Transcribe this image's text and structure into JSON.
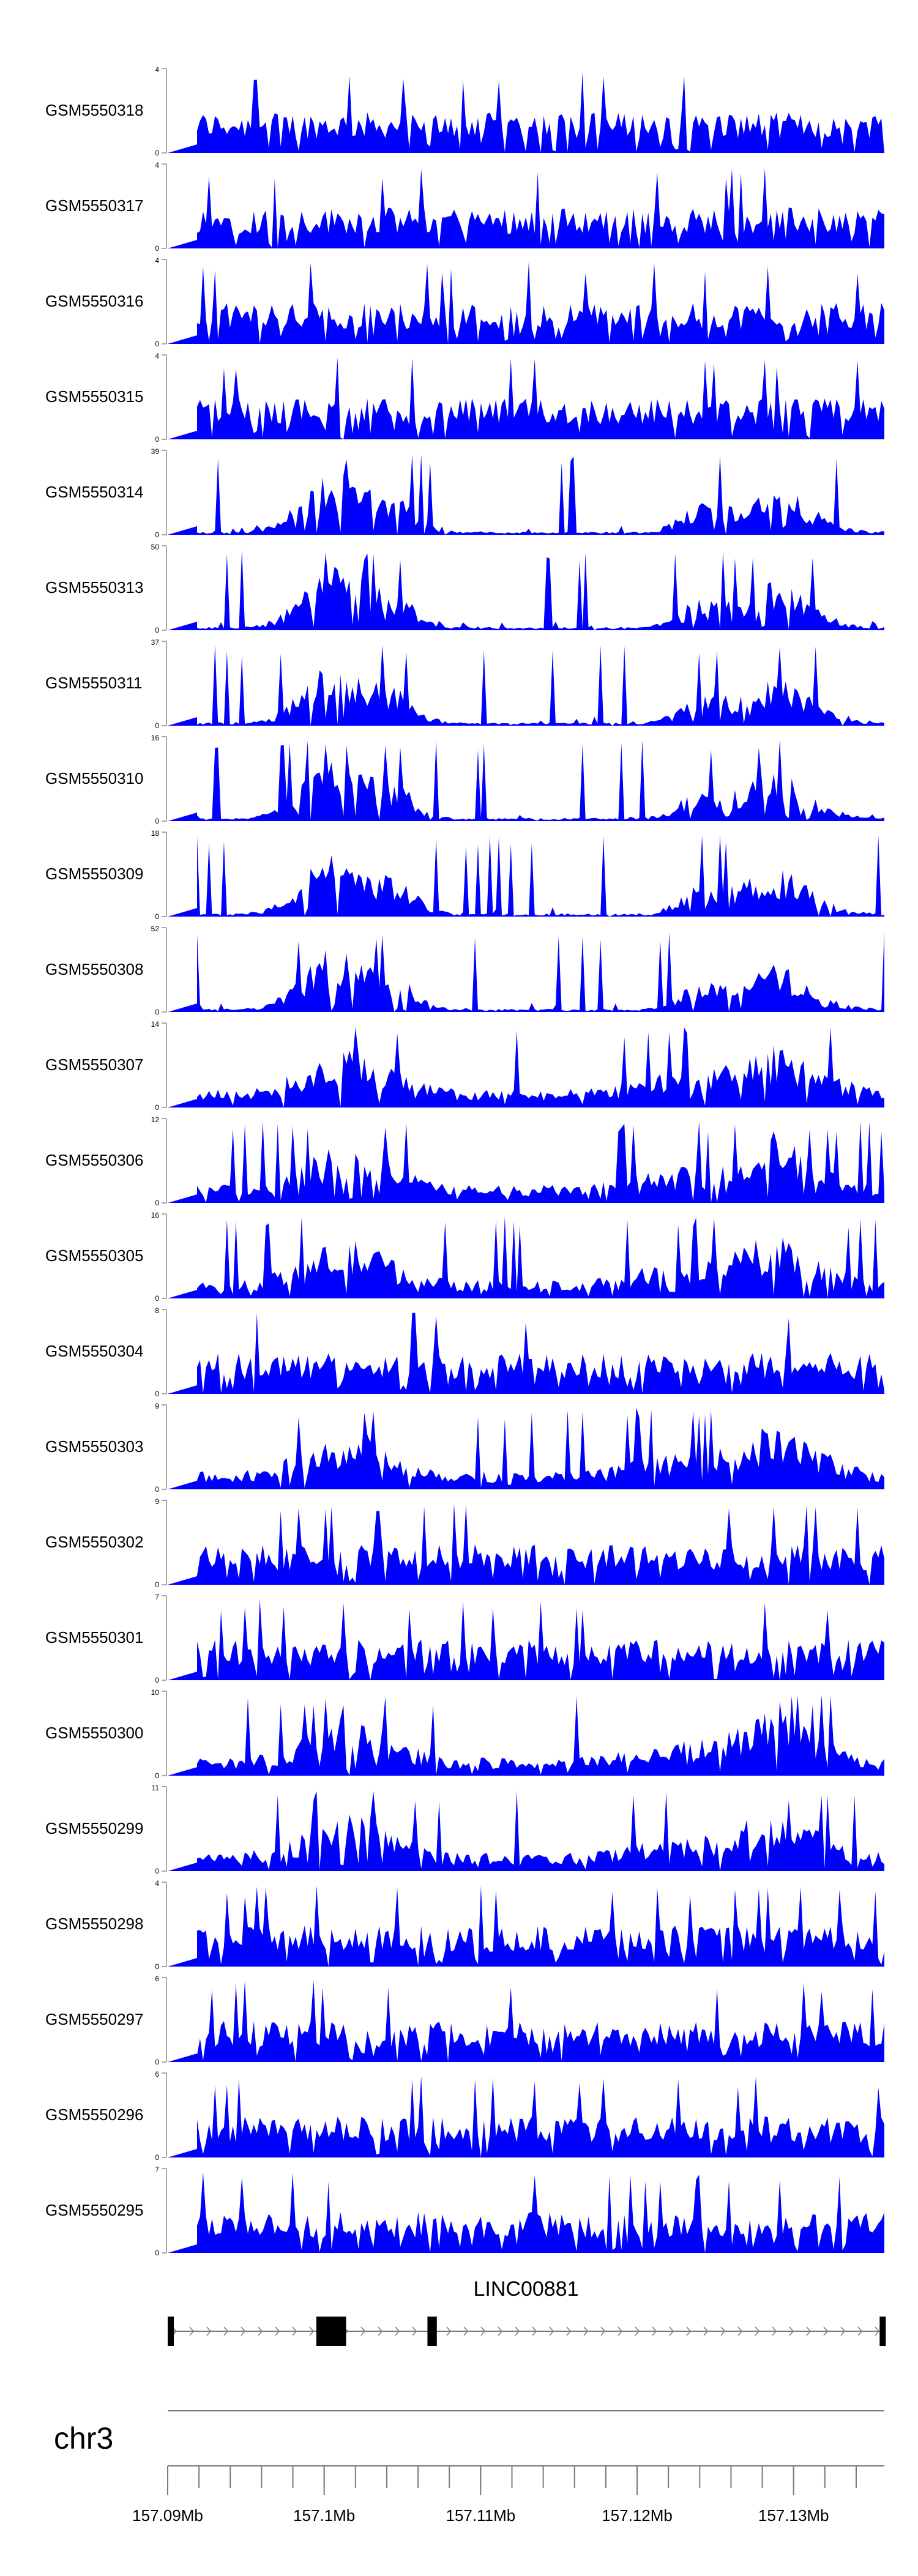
{
  "chart_data": {
    "type": "area",
    "fill_color": "#0000ff",
    "x_unit": "bp",
    "xlim": [
      157090000,
      157135800
    ],
    "tracks": [
      {
        "name": "GSM5550318",
        "ymax": 4,
        "ymin": 0,
        "profile": "flat"
      },
      {
        "name": "GSM5550317",
        "ymax": 4,
        "ymin": 0,
        "profile": "flat"
      },
      {
        "name": "GSM5550316",
        "ymax": 4,
        "ymin": 0,
        "profile": "flat"
      },
      {
        "name": "GSM5550315",
        "ymax": 4,
        "ymin": 0,
        "profile": "flat"
      },
      {
        "name": "GSM5550314",
        "ymax": 39,
        "ymin": 0,
        "profile": "peaks"
      },
      {
        "name": "GSM5550313",
        "ymax": 50,
        "ymin": 0,
        "profile": "peaks"
      },
      {
        "name": "GSM5550311",
        "ymax": 37,
        "ymin": 0,
        "profile": "peaks"
      },
      {
        "name": "GSM5550310",
        "ymax": 16,
        "ymin": 0,
        "profile": "peaks"
      },
      {
        "name": "GSM5550309",
        "ymax": 18,
        "ymin": 0,
        "profile": "peaks"
      },
      {
        "name": "GSM5550308",
        "ymax": 52,
        "ymin": 0,
        "profile": "peaks"
      },
      {
        "name": "GSM5550307",
        "ymax": 14,
        "ymin": 0,
        "profile": "mixed"
      },
      {
        "name": "GSM5550306",
        "ymax": 12,
        "ymin": 0,
        "profile": "mixed"
      },
      {
        "name": "GSM5550305",
        "ymax": 16,
        "ymin": 0,
        "profile": "mixed"
      },
      {
        "name": "GSM5550304",
        "ymax": 8,
        "ymin": 0,
        "profile": "flat"
      },
      {
        "name": "GSM5550303",
        "ymax": 9,
        "ymin": 0,
        "profile": "mixed"
      },
      {
        "name": "GSM5550302",
        "ymax": 9,
        "ymin": 0,
        "profile": "flat"
      },
      {
        "name": "GSM5550301",
        "ymax": 7,
        "ymin": 0,
        "profile": "flat"
      },
      {
        "name": "GSM5550300",
        "ymax": 10,
        "ymin": 0,
        "profile": "mixed"
      },
      {
        "name": "GSM5550299",
        "ymax": 11,
        "ymin": 0,
        "profile": "mixed"
      },
      {
        "name": "GSM5550298",
        "ymax": 4,
        "ymin": 0,
        "profile": "flat"
      },
      {
        "name": "GSM5550297",
        "ymax": 6,
        "ymin": 0,
        "profile": "flat"
      },
      {
        "name": "GSM5550296",
        "ymax": 6,
        "ymin": 0,
        "profile": "flat"
      },
      {
        "name": "GSM5550295",
        "ymax": 7,
        "ymin": 0,
        "profile": "flat"
      }
    ],
    "gene": {
      "name": "LINC00881",
      "start": 157090000,
      "end": 157135800,
      "strand": "+",
      "exons": [
        [
          157090000,
          157090250
        ],
        [
          157099500,
          157101400
        ],
        [
          157106600,
          157107200
        ],
        [
          157135500,
          157135800
        ]
      ]
    },
    "chromosome": "chr3",
    "x_ticks": [
      {
        "pos": 157090000,
        "label": "157.09Mb"
      },
      {
        "pos": 157100000,
        "label": "157.1Mb"
      },
      {
        "pos": 157110000,
        "label": "157.11Mb"
      },
      {
        "pos": 157120000,
        "label": "157.12Mb"
      },
      {
        "pos": 157130000,
        "label": "157.13Mb"
      }
    ],
    "minor_tick_step": 2000
  }
}
